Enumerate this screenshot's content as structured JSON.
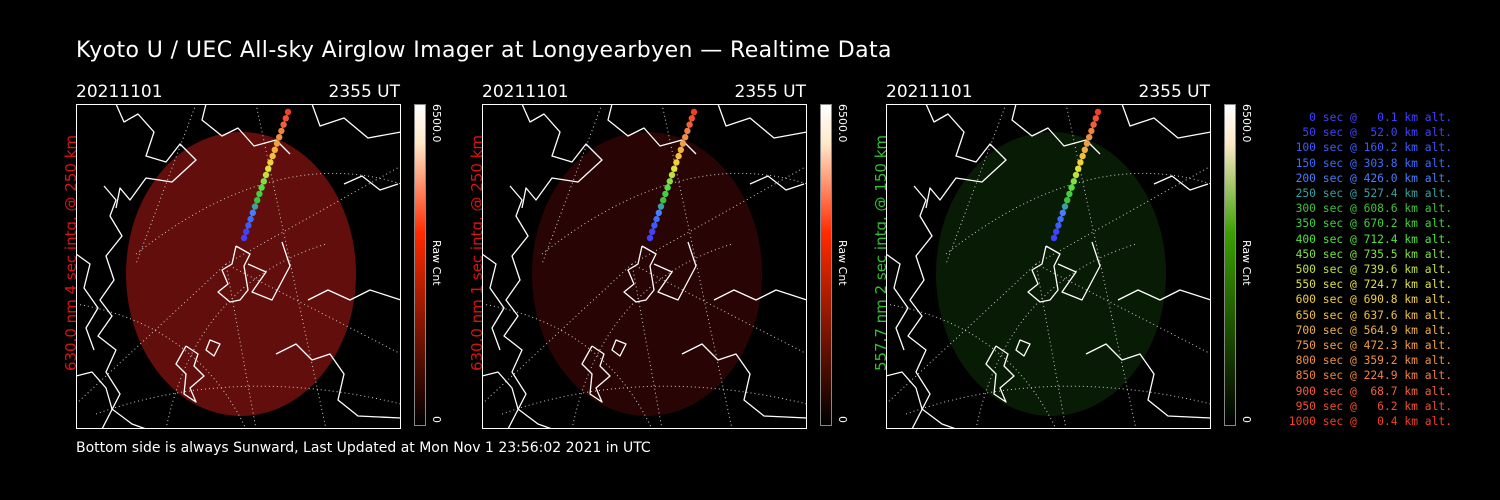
{
  "title": "Kyoto U / UEC All-sky Airglow Imager at Longyearbyen — Realtime Data",
  "footer": "Bottom side is always Sunward, Last Updated at Mon Nov  1 23:56:02 2021 in UTC",
  "panels": [
    {
      "date": "20211101",
      "time": "2355 UT",
      "ylabel": "630.0 nm 4 sec intg. @ 250 km",
      "label_color": "#e01010",
      "cbar_max": "6500.0",
      "cbar_min": "0",
      "cbar_unit": "Raw Cnt",
      "cbar_color": "#ff2a00",
      "glow": "rgba(150,22,18,0.65)"
    },
    {
      "date": "20211101",
      "time": "2355 UT",
      "ylabel": "630.0 nm 1 sec intg. @ 250 km",
      "label_color": "#e01010",
      "cbar_max": "6500.0",
      "cbar_min": "0",
      "cbar_unit": "Raw Cnt",
      "cbar_color": "#ff2a00",
      "glow": "rgba(90,8,8,0.45)"
    },
    {
      "date": "20211101",
      "time": "2355 UT",
      "ylabel": "557.7 nm 2 sec intg. @ 150 km",
      "label_color": "#30c030",
      "cbar_max": "6500.0",
      "cbar_min": "0",
      "cbar_unit": "Raw Cnt",
      "cbar_color": "#3aa000",
      "glow": "rgba(18,60,10,0.45)"
    }
  ],
  "legend": [
    {
      "text": "0 sec @   0.1 km alt.",
      "color": "#4040ff"
    },
    {
      "text": "50 sec @  52.0 km alt.",
      "color": "#4040ff"
    },
    {
      "text": "100 sec @ 160.2 km alt.",
      "color": "#3b5bff"
    },
    {
      "text": "150 sec @ 303.8 km alt.",
      "color": "#3b6cff"
    },
    {
      "text": "200 sec @ 426.0 km alt.",
      "color": "#4a7cff"
    },
    {
      "text": "250 sec @ 527.4 km alt.",
      "color": "#3aa0a0"
    },
    {
      "text": "300 sec @ 608.6 km alt.",
      "color": "#40c040"
    },
    {
      "text": "350 sec @ 670.2 km alt.",
      "color": "#40d040"
    },
    {
      "text": "400 sec @ 712.4 km alt.",
      "color": "#50e040"
    },
    {
      "text": "450 sec @ 735.5 km alt.",
      "color": "#80e040"
    },
    {
      "text": "500 sec @ 739.6 km alt.",
      "color": "#c0e040"
    },
    {
      "text": "550 sec @ 724.7 km alt.",
      "color": "#e0e040"
    },
    {
      "text": "600 sec @ 690.8 km alt.",
      "color": "#f0d040"
    },
    {
      "text": "650 sec @ 637.6 km alt.",
      "color": "#f0c040"
    },
    {
      "text": "700 sec @ 564.9 km alt.",
      "color": "#f0b040"
    },
    {
      "text": "750 sec @ 472.3 km alt.",
      "color": "#f0a040"
    },
    {
      "text": "800 sec @ 359.2 km alt.",
      "color": "#f09040"
    },
    {
      "text": "850 sec @ 224.9 km alt.",
      "color": "#f08040"
    },
    {
      "text": "900 sec @  68.7 km alt.",
      "color": "#f06040"
    },
    {
      "text": "950 sec @   6.2 km alt.",
      "color": "#f05030"
    },
    {
      "text": "1000 sec @   0.4 km alt.",
      "color": "#f04020"
    }
  ]
}
